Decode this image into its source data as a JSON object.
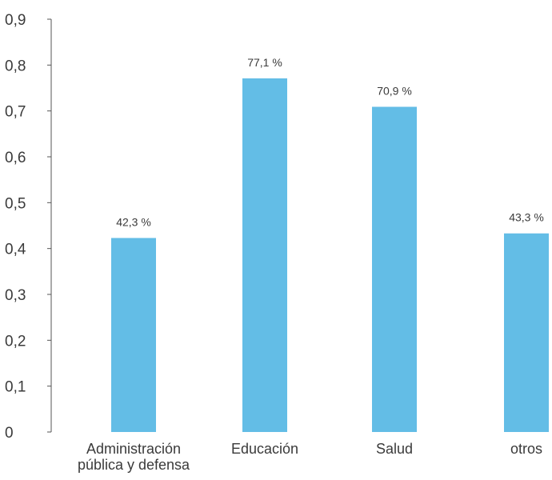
{
  "chart_data": {
    "type": "bar",
    "categories": [
      [
        "Administración",
        "pública y defensa"
      ],
      [
        "Educación"
      ],
      [
        "Salud"
      ],
      [
        "otros"
      ]
    ],
    "values": [
      0.423,
      0.771,
      0.709,
      0.433
    ],
    "data_labels": [
      "42,3 %",
      "77,1 %",
      "70,9 %",
      "43,3 %"
    ],
    "y_ticks": [
      "0",
      "0,1",
      "0,2",
      "0,3",
      "0,4",
      "0,5",
      "0,6",
      "0,7",
      "0,8",
      "0,9"
    ],
    "ylim": [
      0,
      0.9
    ],
    "grid": false,
    "bar_color": "#63bde6",
    "axis_color": "#555555",
    "title": "",
    "xlabel": "",
    "ylabel": ""
  }
}
